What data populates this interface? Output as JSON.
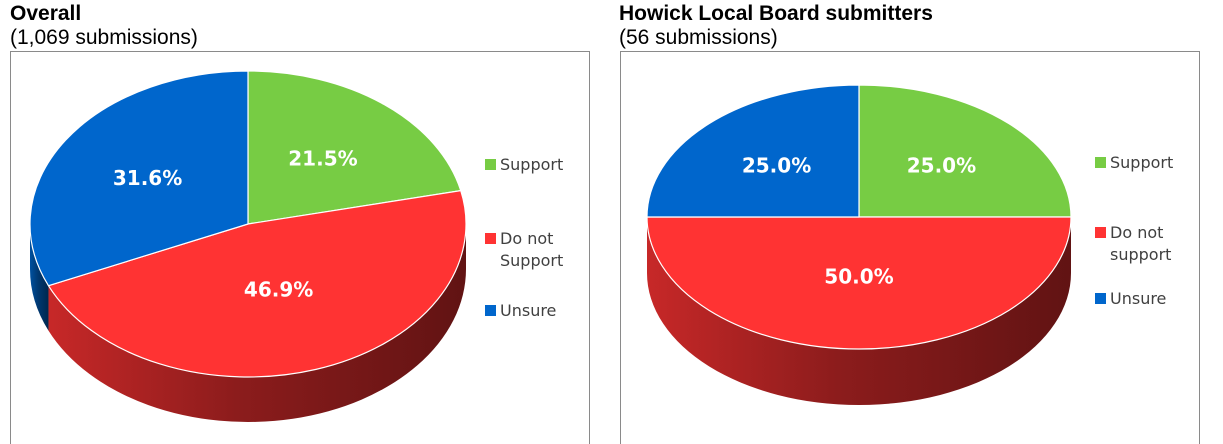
{
  "charts": [
    {
      "title": "Overall",
      "subtitle": "(1,069 submissions)"
    },
    {
      "title": "Howick Local Board submitters",
      "subtitle": "(56 submissions)"
    }
  ],
  "chart_data": [
    {
      "type": "pie",
      "title": "Overall",
      "subtitle": "(1,069 submissions)",
      "legend_position": "right",
      "slices": [
        {
          "name": "Support",
          "value": 21.5,
          "label": "21.5%",
          "color": "#77cc44"
        },
        {
          "name": "Do not Support",
          "legend_lines": [
            "Do not",
            "Support"
          ],
          "value": 46.9,
          "label": "46.9%",
          "color": "#ff3333"
        },
        {
          "name": "Unsure",
          "value": 31.6,
          "label": "31.6%",
          "color": "#0066cc"
        }
      ]
    },
    {
      "type": "pie",
      "title": "Howick Local Board submitters",
      "subtitle": "(56 submissions)",
      "legend_position": "right",
      "slices": [
        {
          "name": "Support",
          "value": 25.0,
          "label": "25.0%",
          "color": "#77cc44"
        },
        {
          "name": "Do not support",
          "legend_lines": [
            "Do not",
            "support"
          ],
          "value": 50.0,
          "label": "50.0%",
          "color": "#ff3333"
        },
        {
          "name": "Unsure",
          "value": 25.0,
          "label": "25.0%",
          "color": "#0066cc"
        }
      ]
    }
  ]
}
